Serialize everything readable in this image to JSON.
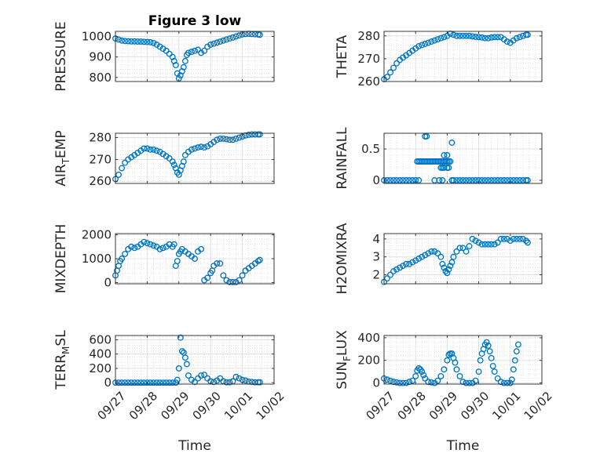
{
  "figure_title": "Figure 3 low",
  "colors": {
    "marker": "#0072BD",
    "axis": "#262626",
    "grid": "#cfcfcf"
  },
  "chart_data": [
    {
      "type": "scatter",
      "name_label": "PRESSURE",
      "ylabel": [
        {
          "t": "PRESSURE"
        }
      ],
      "xlim": [
        0,
        5
      ],
      "ylim": [
        780,
        1025
      ],
      "yticks": [
        800,
        900,
        1000
      ],
      "ytick_labels": [
        "800",
        "900",
        "1000"
      ],
      "xticks": [
        0,
        1,
        2,
        3,
        4,
        5
      ],
      "xtick_labels": [],
      "grid": true,
      "minor_grid": true,
      "title": "Figure 3 low",
      "xlabel": "",
      "x": [
        0.0,
        0.1,
        0.2,
        0.3,
        0.4,
        0.5,
        0.6,
        0.7,
        0.8,
        0.9,
        1.0,
        1.1,
        1.2,
        1.3,
        1.4,
        1.5,
        1.6,
        1.7,
        1.8,
        1.85,
        1.9,
        1.95,
        2.0,
        2.05,
        2.1,
        2.15,
        2.2,
        2.25,
        2.3,
        2.4,
        2.5,
        2.6,
        2.7,
        2.8,
        2.9,
        3.0,
        3.1,
        3.2,
        3.3,
        3.4,
        3.5,
        3.6,
        3.7,
        3.8,
        3.9,
        4.0,
        4.1,
        4.2,
        4.3,
        4.4,
        4.5,
        4.55
      ],
      "y": [
        990,
        985,
        980,
        978,
        977,
        976,
        976,
        975,
        975,
        974,
        973,
        972,
        968,
        960,
        950,
        940,
        930,
        915,
        900,
        880,
        860,
        820,
        795,
        810,
        830,
        850,
        880,
        910,
        920,
        925,
        930,
        935,
        920,
        930,
        950,
        960,
        965,
        970,
        975,
        980,
        985,
        990,
        995,
        1000,
        1005,
        1010,
        1012,
        1013,
        1012,
        1011,
        1010,
        1008
      ]
    },
    {
      "type": "scatter",
      "name_label": "THETA",
      "ylabel": [
        {
          "t": "THETA"
        }
      ],
      "xlim": [
        0,
        5
      ],
      "ylim": [
        260,
        282
      ],
      "yticks": [
        260,
        270,
        280
      ],
      "ytick_labels": [
        "260",
        "270",
        "280"
      ],
      "xticks": [
        0,
        1,
        2,
        3,
        4,
        5
      ],
      "xtick_labels": [],
      "grid": true,
      "minor_grid": true,
      "title": "",
      "xlabel": "",
      "x": [
        0.0,
        0.1,
        0.2,
        0.3,
        0.4,
        0.5,
        0.6,
        0.7,
        0.8,
        0.9,
        1.0,
        1.1,
        1.2,
        1.3,
        1.4,
        1.5,
        1.6,
        1.7,
        1.8,
        1.9,
        2.0,
        2.1,
        2.2,
        2.3,
        2.4,
        2.5,
        2.6,
        2.7,
        2.8,
        2.9,
        3.0,
        3.1,
        3.2,
        3.3,
        3.4,
        3.5,
        3.6,
        3.7,
        3.8,
        3.9,
        4.0,
        4.1,
        4.2,
        4.3,
        4.4,
        4.5,
        4.55
      ],
      "y": [
        261,
        262,
        264,
        266,
        268,
        269.5,
        270.5,
        271.5,
        272.5,
        273.5,
        274.5,
        275.5,
        276,
        276.5,
        277,
        277.5,
        278,
        278.5,
        279,
        279.5,
        280,
        281,
        280.5,
        280,
        280,
        280,
        280,
        280,
        279.8,
        279.6,
        279.5,
        279.3,
        279,
        279,
        279.3,
        279.5,
        279.5,
        279.5,
        278.5,
        277.5,
        277,
        278,
        279,
        279.5,
        280,
        280.5,
        280.5
      ]
    },
    {
      "type": "scatter",
      "name_label": "AIR_TEMP",
      "ylabel": [
        {
          "t": "AIR"
        },
        {
          "t": "T",
          "sub": true
        },
        {
          "t": "EMP"
        }
      ],
      "xlim": [
        0,
        5
      ],
      "ylim": [
        259,
        282
      ],
      "yticks": [
        260,
        270,
        280
      ],
      "ytick_labels": [
        "260",
        "270",
        "280"
      ],
      "xticks": [
        0,
        1,
        2,
        3,
        4,
        5
      ],
      "xtick_labels": [],
      "grid": true,
      "minor_grid": true,
      "title": "",
      "xlabel": "",
      "x": [
        0.0,
        0.1,
        0.2,
        0.3,
        0.4,
        0.5,
        0.6,
        0.7,
        0.8,
        0.9,
        1.0,
        1.1,
        1.2,
        1.3,
        1.4,
        1.5,
        1.6,
        1.7,
        1.8,
        1.85,
        1.9,
        1.95,
        2.0,
        2.05,
        2.1,
        2.15,
        2.2,
        2.3,
        2.4,
        2.5,
        2.6,
        2.7,
        2.8,
        2.9,
        3.0,
        3.1,
        3.2,
        3.3,
        3.4,
        3.5,
        3.6,
        3.7,
        3.8,
        3.9,
        4.0,
        4.1,
        4.2,
        4.3,
        4.4,
        4.5,
        4.55
      ],
      "y": [
        261,
        263,
        266,
        268.5,
        270,
        271,
        272,
        273,
        274,
        275,
        275,
        274.5,
        274.5,
        274,
        273.5,
        272.5,
        271.5,
        270.5,
        269,
        267.5,
        266,
        264,
        263,
        265,
        267,
        269,
        272,
        273.5,
        274.5,
        275,
        275.5,
        275.8,
        275.5,
        276,
        277,
        278,
        279,
        279.5,
        279.5,
        279.3,
        279,
        279,
        279.5,
        280,
        280.5,
        281,
        281.3,
        281.5,
        281.5,
        281.5,
        281.5
      ]
    },
    {
      "type": "scatter",
      "name_label": "RAINFALL",
      "ylabel": [
        {
          "t": "RAINFALL"
        }
      ],
      "xlim": [
        0,
        5
      ],
      "ylim": [
        -0.05,
        0.75
      ],
      "yticks": [
        0,
        0.5
      ],
      "ytick_labels": [
        "0",
        "0.5"
      ],
      "xticks": [
        0,
        1,
        2,
        3,
        4,
        5
      ],
      "xtick_labels": [],
      "grid": true,
      "minor_grid": true,
      "title": "",
      "xlabel": "",
      "x": [
        0.0,
        0.1,
        0.2,
        0.3,
        0.4,
        0.5,
        0.6,
        0.7,
        0.8,
        0.9,
        1.0,
        1.05,
        1.1,
        1.15,
        1.2,
        1.25,
        1.3,
        1.35,
        1.4,
        1.45,
        1.5,
        1.55,
        1.6,
        1.65,
        1.7,
        1.75,
        1.8,
        1.85,
        1.9,
        1.95,
        2.0,
        2.05,
        2.1,
        1.3,
        1.35,
        1.8,
        1.85,
        1.9,
        2.05,
        1.9,
        2.0,
        2.15,
        2.0,
        1.1,
        1.6,
        1.75,
        1.85,
        2.15,
        2.2,
        2.3,
        2.4,
        2.5,
        2.6,
        2.7,
        2.8,
        2.9,
        3.0,
        3.1,
        3.2,
        3.3,
        3.4,
        3.5,
        3.6,
        3.7,
        3.8,
        3.9,
        4.0,
        4.1,
        4.2,
        4.3,
        4.4,
        4.5,
        4.55
      ],
      "y": [
        0,
        0,
        0,
        0,
        0,
        0,
        0,
        0,
        0,
        0,
        0,
        0.3,
        0.3,
        0.3,
        0.3,
        0.3,
        0.3,
        0.3,
        0.3,
        0.3,
        0.3,
        0.3,
        0.3,
        0.3,
        0.3,
        0.3,
        0.3,
        0.3,
        0.3,
        0.3,
        0.3,
        0.3,
        0.3,
        0.7,
        0.7,
        0.2,
        0.2,
        0.2,
        0.2,
        0.4,
        0.4,
        0.6,
        0.2,
        0,
        0,
        0,
        0,
        0,
        0,
        0,
        0,
        0,
        0,
        0,
        0,
        0,
        0,
        0,
        0,
        0,
        0,
        0,
        0,
        0,
        0,
        0,
        0,
        0,
        0,
        0,
        0,
        0,
        0
      ]
    },
    {
      "type": "scatter",
      "name_label": "MIXDEPTH",
      "ylabel": [
        {
          "t": "MIXDEPTH"
        }
      ],
      "xlim": [
        0,
        5
      ],
      "ylim": [
        -50,
        2050
      ],
      "yticks": [
        0,
        1000,
        2000
      ],
      "ytick_labels": [
        "0",
        "1000",
        "2000"
      ],
      "xticks": [
        0,
        1,
        2,
        3,
        4,
        5
      ],
      "xtick_labels": [],
      "grid": true,
      "minor_grid": true,
      "title": "",
      "xlabel": "",
      "x": [
        0.0,
        0.05,
        0.1,
        0.15,
        0.2,
        0.3,
        0.4,
        0.5,
        0.6,
        0.7,
        0.8,
        0.9,
        1.0,
        1.1,
        1.2,
        1.3,
        1.4,
        1.5,
        1.6,
        1.7,
        1.8,
        1.85,
        1.9,
        1.95,
        2.0,
        2.05,
        2.1,
        2.2,
        2.3,
        2.4,
        2.5,
        2.6,
        2.7,
        2.8,
        2.9,
        3.0,
        3.05,
        3.1,
        3.2,
        3.3,
        3.4,
        3.5,
        3.6,
        3.7,
        3.8,
        3.9,
        4.0,
        4.1,
        4.2,
        4.3,
        4.4,
        4.5,
        4.55
      ],
      "y": [
        300,
        500,
        700,
        900,
        1000,
        1200,
        1400,
        1500,
        1450,
        1500,
        1600,
        1700,
        1650,
        1600,
        1550,
        1500,
        1400,
        1450,
        1500,
        1600,
        1500,
        1600,
        700,
        900,
        1200,
        1300,
        1400,
        1300,
        1200,
        1100,
        1000,
        1300,
        1400,
        100,
        200,
        400,
        500,
        700,
        800,
        800,
        300,
        100,
        20,
        20,
        20,
        100,
        300,
        500,
        600,
        700,
        800,
        900,
        950
      ]
    },
    {
      "type": "scatter",
      "name_label": "H2OMIXRA",
      "ylabel": [
        {
          "t": "H2OMIXRA"
        }
      ],
      "xlim": [
        0,
        5
      ],
      "ylim": [
        1.5,
        4.3
      ],
      "yticks": [
        2,
        3,
        4
      ],
      "ytick_labels": [
        "2",
        "3",
        "4"
      ],
      "xticks": [
        0,
        1,
        2,
        3,
        4,
        5
      ],
      "xtick_labels": [],
      "grid": true,
      "minor_grid": true,
      "title": "",
      "xlabel": "",
      "x": [
        0.0,
        0.1,
        0.2,
        0.3,
        0.4,
        0.5,
        0.6,
        0.7,
        0.8,
        0.9,
        1.0,
        1.1,
        1.2,
        1.3,
        1.4,
        1.5,
        1.6,
        1.7,
        1.8,
        1.85,
        1.9,
        1.95,
        2.0,
        2.05,
        2.1,
        2.15,
        2.2,
        2.3,
        2.4,
        2.5,
        2.6,
        2.7,
        2.8,
        2.9,
        3.0,
        3.1,
        3.2,
        3.3,
        3.4,
        3.5,
        3.6,
        3.7,
        3.8,
        3.9,
        4.0,
        4.1,
        4.2,
        4.3,
        4.4,
        4.5,
        4.55
      ],
      "y": [
        1.6,
        1.8,
        2.0,
        2.2,
        2.3,
        2.4,
        2.5,
        2.6,
        2.6,
        2.7,
        2.8,
        2.9,
        3.0,
        3.1,
        3.2,
        3.3,
        3.3,
        3.2,
        3.0,
        2.6,
        2.4,
        2.2,
        2.1,
        2.3,
        2.5,
        2.7,
        3.0,
        3.3,
        3.5,
        3.5,
        3.3,
        3.6,
        4.0,
        3.9,
        3.8,
        3.7,
        3.7,
        3.7,
        3.7,
        3.7,
        3.8,
        4.0,
        4.0,
        4.0,
        3.9,
        4.0,
        4.0,
        4.0,
        4.0,
        3.9,
        3.8
      ]
    },
    {
      "type": "scatter",
      "name_label": "TERR_MSL",
      "ylabel": [
        {
          "t": "TERR"
        },
        {
          "t": "M",
          "sub": true
        },
        {
          "t": "SL"
        }
      ],
      "xlim": [
        0,
        5
      ],
      "ylim": [
        -20,
        660
      ],
      "yticks": [
        0,
        200,
        400,
        600
      ],
      "ytick_labels": [
        "0",
        "200",
        "400",
        "600"
      ],
      "xticks": [
        0,
        1,
        2,
        3,
        4,
        5
      ],
      "xtick_labels": [
        "09/27",
        "09/28",
        "09/29",
        "09/30",
        "10/01",
        "10/02"
      ],
      "grid": true,
      "minor_grid": true,
      "title": "",
      "xlabel": "Time",
      "x": [
        0.0,
        0.1,
        0.2,
        0.3,
        0.4,
        0.5,
        0.6,
        0.7,
        0.8,
        0.9,
        1.0,
        1.1,
        1.2,
        1.3,
        1.4,
        1.5,
        1.6,
        1.7,
        1.8,
        1.9,
        1.95,
        2.0,
        2.05,
        2.1,
        2.15,
        2.2,
        2.25,
        2.3,
        2.4,
        2.5,
        2.6,
        2.7,
        2.8,
        2.9,
        3.0,
        3.1,
        3.2,
        3.3,
        3.4,
        3.5,
        3.6,
        3.7,
        3.8,
        3.9,
        4.0,
        4.1,
        4.2,
        4.3,
        4.4,
        4.5,
        4.55
      ],
      "y": [
        0,
        0,
        0,
        0,
        0,
        0,
        0,
        0,
        0,
        0,
        0,
        0,
        0,
        0,
        0,
        0,
        0,
        0,
        0,
        0,
        40,
        200,
        630,
        440,
        420,
        350,
        260,
        100,
        40,
        10,
        60,
        100,
        110,
        60,
        20,
        10,
        30,
        60,
        20,
        5,
        5,
        20,
        80,
        60,
        40,
        30,
        15,
        10,
        5,
        5,
        5
      ]
    },
    {
      "type": "scatter",
      "name_label": "SUN_FLUX",
      "ylabel": [
        {
          "t": "SUN"
        },
        {
          "t": "F",
          "sub": true
        },
        {
          "t": "LUX"
        }
      ],
      "xlim": [
        0,
        5
      ],
      "ylim": [
        -10,
        420
      ],
      "yticks": [
        0,
        200,
        400
      ],
      "ytick_labels": [
        "0",
        "200",
        "400"
      ],
      "xticks": [
        0,
        1,
        2,
        3,
        4,
        5
      ],
      "xtick_labels": [
        "09/27",
        "09/28",
        "09/29",
        "09/30",
        "10/01",
        "10/02"
      ],
      "grid": true,
      "minor_grid": true,
      "title": "",
      "xlabel": "Time",
      "x": [
        0.0,
        0.1,
        0.2,
        0.3,
        0.4,
        0.5,
        0.6,
        0.7,
        0.8,
        0.9,
        1.0,
        1.05,
        1.1,
        1.15,
        1.2,
        1.25,
        1.3,
        1.4,
        1.5,
        1.6,
        1.7,
        1.8,
        1.9,
        2.0,
        2.05,
        2.1,
        2.15,
        2.2,
        2.25,
        2.3,
        2.4,
        2.5,
        2.6,
        2.7,
        2.8,
        2.9,
        3.0,
        3.05,
        3.1,
        3.15,
        3.2,
        3.25,
        3.3,
        3.35,
        3.4,
        3.45,
        3.5,
        3.6,
        3.7,
        3.8,
        3.9,
        4.0,
        4.05,
        4.1,
        4.15,
        4.2,
        4.25
      ],
      "y": [
        40,
        30,
        20,
        10,
        5,
        0,
        0,
        0,
        10,
        20,
        60,
        110,
        130,
        120,
        100,
        70,
        40,
        10,
        5,
        0,
        20,
        60,
        120,
        200,
        250,
        260,
        260,
        220,
        180,
        120,
        60,
        10,
        0,
        0,
        0,
        20,
        100,
        200,
        260,
        300,
        340,
        360,
        330,
        280,
        220,
        150,
        100,
        40,
        10,
        0,
        0,
        0,
        30,
        120,
        200,
        280,
        340
      ]
    }
  ]
}
